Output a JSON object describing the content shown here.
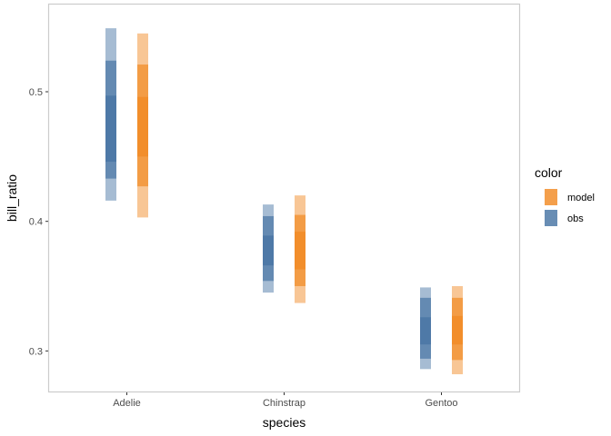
{
  "chart_data": {
    "type": "interval",
    "description_free": true,
    "xlabel": "species",
    "ylabel": "bill_ratio",
    "categories": [
      "Adelie",
      "Chinstrap",
      "Gentoo"
    ],
    "ylim": [
      0.268,
      0.568
    ],
    "yticks": [
      0.3,
      0.4,
      0.5
    ],
    "ytick_labels": [
      "0.3",
      "0.4",
      "0.5"
    ],
    "grid": false,
    "panel_border": true,
    "legend": {
      "title": "color",
      "position": "right",
      "entries": [
        {
          "key": "model",
          "label": "model",
          "color": "#f28e2b"
        },
        {
          "key": "obs",
          "label": "obs",
          "color": "#4e79a7"
        }
      ]
    },
    "series": [
      {
        "name": "obs",
        "color": "#4e79a7",
        "intervals": [
          {
            "category": "Adelie",
            "bands": [
              {
                "level": 0.95,
                "low": 0.416,
                "high": 0.549
              },
              {
                "level": 0.8,
                "low": 0.433,
                "high": 0.524
              },
              {
                "level": 0.5,
                "low": 0.446,
                "high": 0.497
              }
            ]
          },
          {
            "category": "Chinstrap",
            "bands": [
              {
                "level": 0.95,
                "low": 0.345,
                "high": 0.413
              },
              {
                "level": 0.8,
                "low": 0.354,
                "high": 0.404
              },
              {
                "level": 0.5,
                "low": 0.366,
                "high": 0.389
              }
            ]
          },
          {
            "category": "Gentoo",
            "bands": [
              {
                "level": 0.95,
                "low": 0.286,
                "high": 0.349
              },
              {
                "level": 0.8,
                "low": 0.294,
                "high": 0.341
              },
              {
                "level": 0.5,
                "low": 0.305,
                "high": 0.326
              }
            ]
          }
        ]
      },
      {
        "name": "model",
        "color": "#f28e2b",
        "intervals": [
          {
            "category": "Adelie",
            "bands": [
              {
                "level": 0.95,
                "low": 0.403,
                "high": 0.545
              },
              {
                "level": 0.8,
                "low": 0.427,
                "high": 0.521
              },
              {
                "level": 0.5,
                "low": 0.45,
                "high": 0.496
              }
            ]
          },
          {
            "category": "Chinstrap",
            "bands": [
              {
                "level": 0.95,
                "low": 0.337,
                "high": 0.42
              },
              {
                "level": 0.8,
                "low": 0.35,
                "high": 0.405
              },
              {
                "level": 0.5,
                "low": 0.363,
                "high": 0.392
              }
            ]
          },
          {
            "category": "Gentoo",
            "bands": [
              {
                "level": 0.95,
                "low": 0.282,
                "high": 0.35
              },
              {
                "level": 0.8,
                "low": 0.293,
                "high": 0.341
              },
              {
                "level": 0.5,
                "low": 0.305,
                "high": 0.327
              }
            ]
          }
        ]
      }
    ]
  }
}
